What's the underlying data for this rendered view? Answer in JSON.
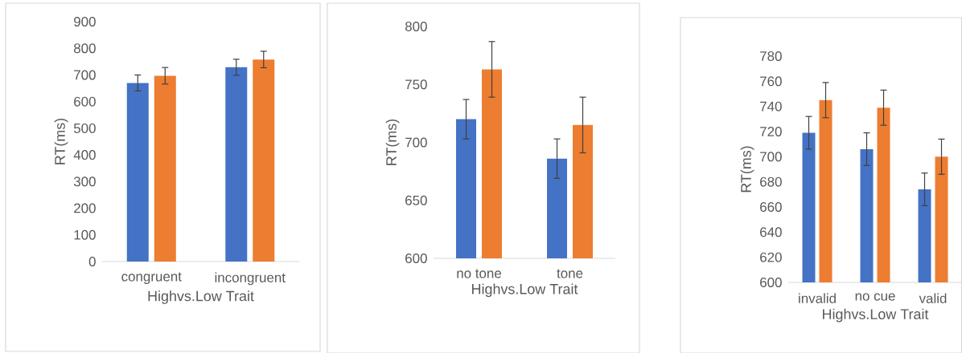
{
  "chart_data": [
    {
      "type": "bar",
      "xlabel": "Highvs.Low Trait",
      "ylabel": "RT(ms)",
      "categories": [
        "congruent",
        "incongruent"
      ],
      "series": [
        {
          "color": "#4472c4",
          "values": [
            670,
            729
          ],
          "errors": [
            30,
            30
          ]
        },
        {
          "color": "#ed7d31",
          "values": [
            697,
            758
          ],
          "errors": [
            31,
            31
          ]
        }
      ],
      "ylim": [
        0,
        900
      ],
      "yticks": [
        0,
        100,
        200,
        300,
        400,
        500,
        600,
        700,
        800,
        900
      ]
    },
    {
      "type": "bar",
      "xlabel": "Highvs.Low Trait",
      "ylabel": "RT(ms)",
      "categories": [
        "no tone",
        "tone"
      ],
      "series": [
        {
          "color": "#4472c4",
          "values": [
            720,
            686
          ],
          "errors": [
            17,
            17
          ]
        },
        {
          "color": "#ed7d31",
          "values": [
            763,
            715
          ],
          "errors": [
            24,
            24
          ]
        }
      ],
      "ylim": [
        600,
        800
      ],
      "yticks": [
        600,
        650,
        700,
        750,
        800
      ]
    },
    {
      "type": "bar",
      "xlabel": "Highvs.Low Trait",
      "ylabel": "RT(ms)",
      "categories": [
        "invalid",
        "no cue",
        "valid"
      ],
      "series": [
        {
          "color": "#4472c4",
          "values": [
            719,
            706,
            674
          ],
          "errors": [
            13,
            13,
            13
          ]
        },
        {
          "color": "#ed7d31",
          "values": [
            745,
            739,
            700
          ],
          "errors": [
            14,
            14,
            14
          ]
        }
      ],
      "ylim": [
        600,
        780
      ],
      "yticks": [
        600,
        620,
        640,
        660,
        680,
        700,
        720,
        740,
        760,
        780
      ]
    }
  ]
}
